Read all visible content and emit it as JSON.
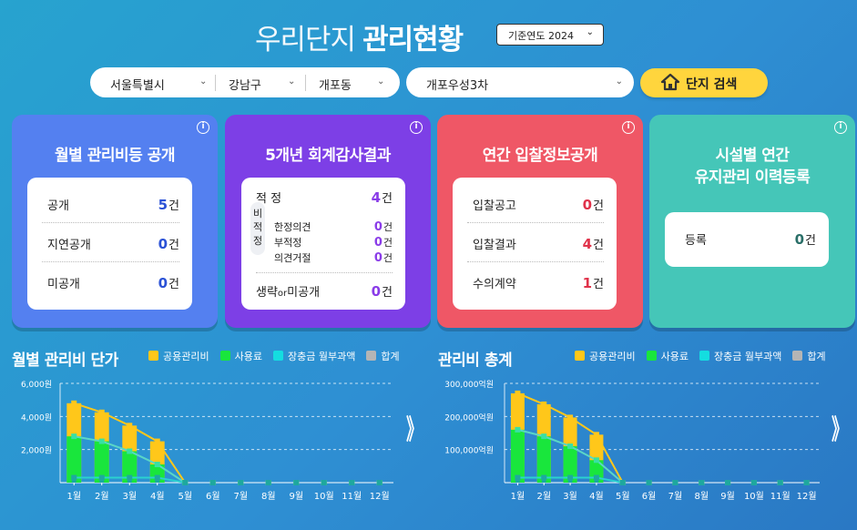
{
  "header": {
    "title_light": "우리단지",
    "title_bold": "관리현황",
    "year_label": "기준연도 2024"
  },
  "filters": {
    "city": "서울특별시",
    "district": "강남구",
    "dong": "개포동",
    "apartment": "개포우성3차",
    "search_label": "단지 검색"
  },
  "cards": {
    "monthly": {
      "title": "월별 관리비등 공개",
      "rows": [
        {
          "label": "공개",
          "value": "5",
          "unit": "건"
        },
        {
          "label": "지연공개",
          "value": "0",
          "unit": "건"
        },
        {
          "label": "미공개",
          "value": "0",
          "unit": "건"
        }
      ]
    },
    "audit": {
      "title": "5개년 회계감사결과",
      "top": {
        "label": "적 정",
        "value": "4",
        "unit": "건"
      },
      "sub_label_chars": [
        "비",
        "적",
        "정"
      ],
      "sub_rows": [
        {
          "label": "한정의견",
          "value": "0",
          "unit": "건"
        },
        {
          "label": "부적정",
          "value": "0",
          "unit": "건"
        },
        {
          "label": "의견거절",
          "value": "0",
          "unit": "건"
        }
      ],
      "bottom": {
        "label_a": "생략",
        "label_or": "or",
        "label_b": "미공개",
        "value": "0",
        "unit": "건"
      }
    },
    "bid": {
      "title": "연간 입찰정보공개",
      "rows": [
        {
          "label": "입찰공고",
          "value": "0",
          "unit": "건"
        },
        {
          "label": "입찰결과",
          "value": "4",
          "unit": "건"
        },
        {
          "label": "수의계약",
          "value": "1",
          "unit": "건"
        }
      ]
    },
    "facility": {
      "title_line1": "시설별 연간",
      "title_line2": "유지관리 이력등록",
      "rows": [
        {
          "label": "등록",
          "value": "0",
          "unit": "건"
        }
      ]
    },
    "info_glyph": "i"
  },
  "legend": [
    {
      "label": "공용관리비",
      "color": "#ffc71a"
    },
    {
      "label": "사용료",
      "color": "#19e63c"
    },
    {
      "label": "장충금 월부과액",
      "color": "#14dde0"
    },
    {
      "label": "합계",
      "color": "#b5b5b5"
    }
  ],
  "sections": {
    "left_title": "월별 관리비 단가",
    "right_title": "관리비 총계",
    "next_arrow": "》"
  },
  "chart_data": [
    {
      "type": "bar",
      "title": "월별 관리비 단가",
      "categories": [
        "1월",
        "2월",
        "3월",
        "4월",
        "5월",
        "6월",
        "7월",
        "8월",
        "9월",
        "10월",
        "11월",
        "12월"
      ],
      "ytick_labels": [
        "6,000원",
        "4,000원",
        "2,000원"
      ],
      "ylim": [
        0,
        6000
      ],
      "series": [
        {
          "name": "공용관리비",
          "values": [
            1700,
            1450,
            1250,
            1100,
            0,
            0,
            0,
            0,
            0,
            0,
            0,
            0
          ]
        },
        {
          "name": "사용료",
          "values": [
            2800,
            2500,
            1900,
            1100,
            0,
            0,
            0,
            0,
            0,
            0,
            0,
            0
          ]
        },
        {
          "name": "장충금 월부과액",
          "values": [
            300,
            300,
            300,
            300,
            0,
            0,
            0,
            0,
            0,
            0,
            0,
            0
          ]
        },
        {
          "name": "합계",
          "values": [
            4800,
            4250,
            3450,
            2500,
            0,
            0,
            0,
            0,
            0,
            0,
            0,
            0
          ]
        }
      ],
      "grid": true
    },
    {
      "type": "bar",
      "title": "관리비 총계",
      "categories": [
        "1월",
        "2월",
        "3월",
        "4월",
        "5월",
        "6월",
        "7월",
        "8월",
        "9월",
        "10월",
        "11월",
        "12월"
      ],
      "ytick_labels": [
        "300,000억원",
        "200,000억원",
        "100,000억원"
      ],
      "ylim": [
        0,
        300000
      ],
      "series": [
        {
          "name": "공용관리비",
          "values": [
            95000,
            82000,
            72000,
            62000,
            0,
            0,
            0,
            0,
            0,
            0,
            0,
            0
          ]
        },
        {
          "name": "사용료",
          "values": [
            160000,
            140000,
            110000,
            68000,
            0,
            0,
            0,
            0,
            0,
            0,
            0,
            0
          ]
        },
        {
          "name": "장충금 월부과액",
          "values": [
            15000,
            15000,
            15000,
            15000,
            0,
            0,
            0,
            0,
            0,
            0,
            0,
            0
          ]
        },
        {
          "name": "합계",
          "values": [
            270000,
            237000,
            197000,
            145000,
            0,
            0,
            0,
            0,
            0,
            0,
            0,
            0
          ]
        }
      ],
      "grid": true
    }
  ]
}
